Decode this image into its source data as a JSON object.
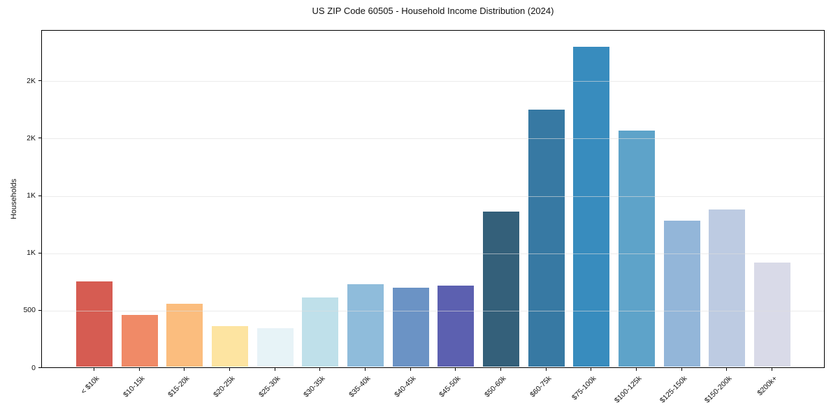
{
  "chart_data": {
    "type": "bar",
    "title": "US ZIP Code 60505 - Household Income Distribution (2024)",
    "xlabel": "",
    "ylabel": "Households",
    "categories": [
      "< $10k",
      "$10-15k",
      "$15-20k",
      "$20-25k",
      "$25-30k",
      "$30-35k",
      "$35-40k",
      "$40-45k",
      "$45-50k",
      "$50-60k",
      "$60-75k",
      "$75-100k",
      "$100-125k",
      "$125-150k",
      "$150-200k",
      "$200k+"
    ],
    "values": [
      745,
      450,
      550,
      355,
      335,
      600,
      720,
      685,
      705,
      1350,
      2240,
      2790,
      2055,
      1275,
      1370,
      905
    ],
    "bar_colors": [
      "#d65c52",
      "#f08a67",
      "#fbbd7e",
      "#fde4a1",
      "#e7f3f7",
      "#bfe0ea",
      "#8fbcdb",
      "#6b93c5",
      "#5c60b0",
      "#34607a",
      "#3779a3",
      "#388cbe",
      "#5ea3c9",
      "#93b6d9",
      "#bdcbe2",
      "#d9dae8"
    ],
    "ylim": [
      0,
      2940
    ],
    "y_ticks": [
      {
        "value": 0,
        "label": "0"
      },
      {
        "value": 500,
        "label": "500"
      },
      {
        "value": 1000,
        "label": "1K"
      },
      {
        "value": 1500,
        "label": "1K"
      },
      {
        "value": 2000,
        "label": "2K"
      },
      {
        "value": 2500,
        "label": "2K"
      }
    ],
    "grid": "horizontal",
    "legend": "none",
    "background_color": "#ffffff",
    "spine_color": "#000000",
    "grid_color": "#e6e6e6"
  }
}
